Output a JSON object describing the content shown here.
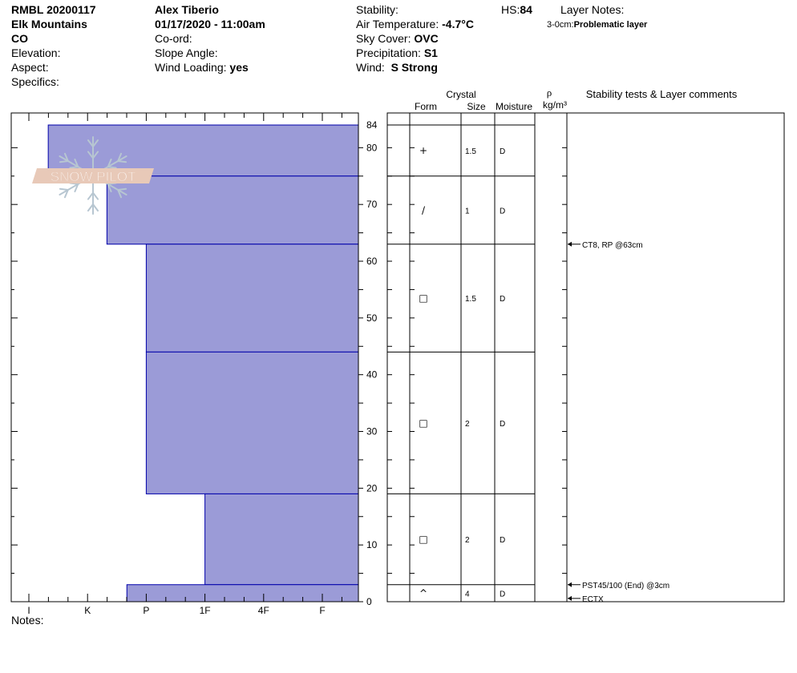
{
  "header": {
    "col1": {
      "site": "RMBL 20200117",
      "range": "Elk Mountains",
      "state": "CO",
      "elevation_label": "Elevation:",
      "aspect_label": "Aspect:",
      "specifics_label": "Specifics:"
    },
    "col2": {
      "observer": "Alex Tiberio",
      "datetime": "01/17/2020 - 11:00am",
      "coord_label": "Co-ord:",
      "slope_label": "Slope Angle:",
      "wind_loading_label": "Wind Loading:",
      "wind_loading_value": "yes"
    },
    "col3": {
      "stability_label": "Stability:",
      "air_temp_label": "Air Temperature:",
      "air_temp_value": "-4.7°C",
      "sky_label": "Sky Cover:",
      "sky_value": "OVC",
      "precip_label": "Precipitation:",
      "precip_value": "S1",
      "wind_label": "Wind:",
      "wind_value": "S Strong"
    },
    "hs_label": "HS:",
    "hs_value": "84",
    "layer_notes_label": "Layer Notes:",
    "layer_note_depth": "3-0cm:",
    "layer_note_text": "Problematic layer"
  },
  "logo": {
    "text": "SNOW PILOT"
  },
  "table_headers": {
    "crystal": "Crystal",
    "form": "Form",
    "size": "Size",
    "moisture": "Moisture",
    "rho": "ρ",
    "density_unit": "kg/m³",
    "comments": "Stability tests & Layer comments"
  },
  "notes_label": "Notes:",
  "colors": {
    "bar_fill": "#9b9bd7",
    "bar_stroke": "#0000aa",
    "logo": "#e8c9b8",
    "flake": "#b7c6d1"
  },
  "chart_data": {
    "type": "bar",
    "orientation": "horizontal",
    "hardness_categories": [
      "I",
      "K",
      "P",
      "1F",
      "4F",
      "F"
    ],
    "height_axis": {
      "ylim": [
        0,
        84
      ],
      "ticks": [
        0,
        10,
        20,
        30,
        40,
        50,
        60,
        70,
        80,
        84
      ]
    },
    "layers": [
      {
        "bottom": 75,
        "top": 84,
        "hardness_index": 0.33,
        "form": "+",
        "size": "1.5",
        "moisture": "D"
      },
      {
        "bottom": 63,
        "top": 75,
        "hardness_index": 1.33,
        "form": "/",
        "size": "1",
        "moisture": "D"
      },
      {
        "bottom": 44,
        "top": 63,
        "hardness_index": 2.0,
        "form": "□",
        "size": "1.5",
        "moisture": "D"
      },
      {
        "bottom": 19,
        "top": 44,
        "hardness_index": 2.0,
        "form": "□",
        "size": "2",
        "moisture": "D"
      },
      {
        "bottom": 3,
        "top": 19,
        "hardness_index": 3.0,
        "form": "□",
        "size": "2",
        "moisture": "D"
      },
      {
        "bottom": 0,
        "top": 3,
        "hardness_index": 1.67,
        "form": "^",
        "size": "4",
        "moisture": "D"
      }
    ],
    "layer_boundaries": [
      84,
      75,
      63,
      44,
      19,
      3,
      0
    ],
    "comments": [
      {
        "height": 63,
        "text": "CT8, RP @63cm"
      },
      {
        "height": 3,
        "text": "PST45/100 (End) @3cm"
      },
      {
        "height": 1,
        "text": "ECTX"
      }
    ]
  }
}
